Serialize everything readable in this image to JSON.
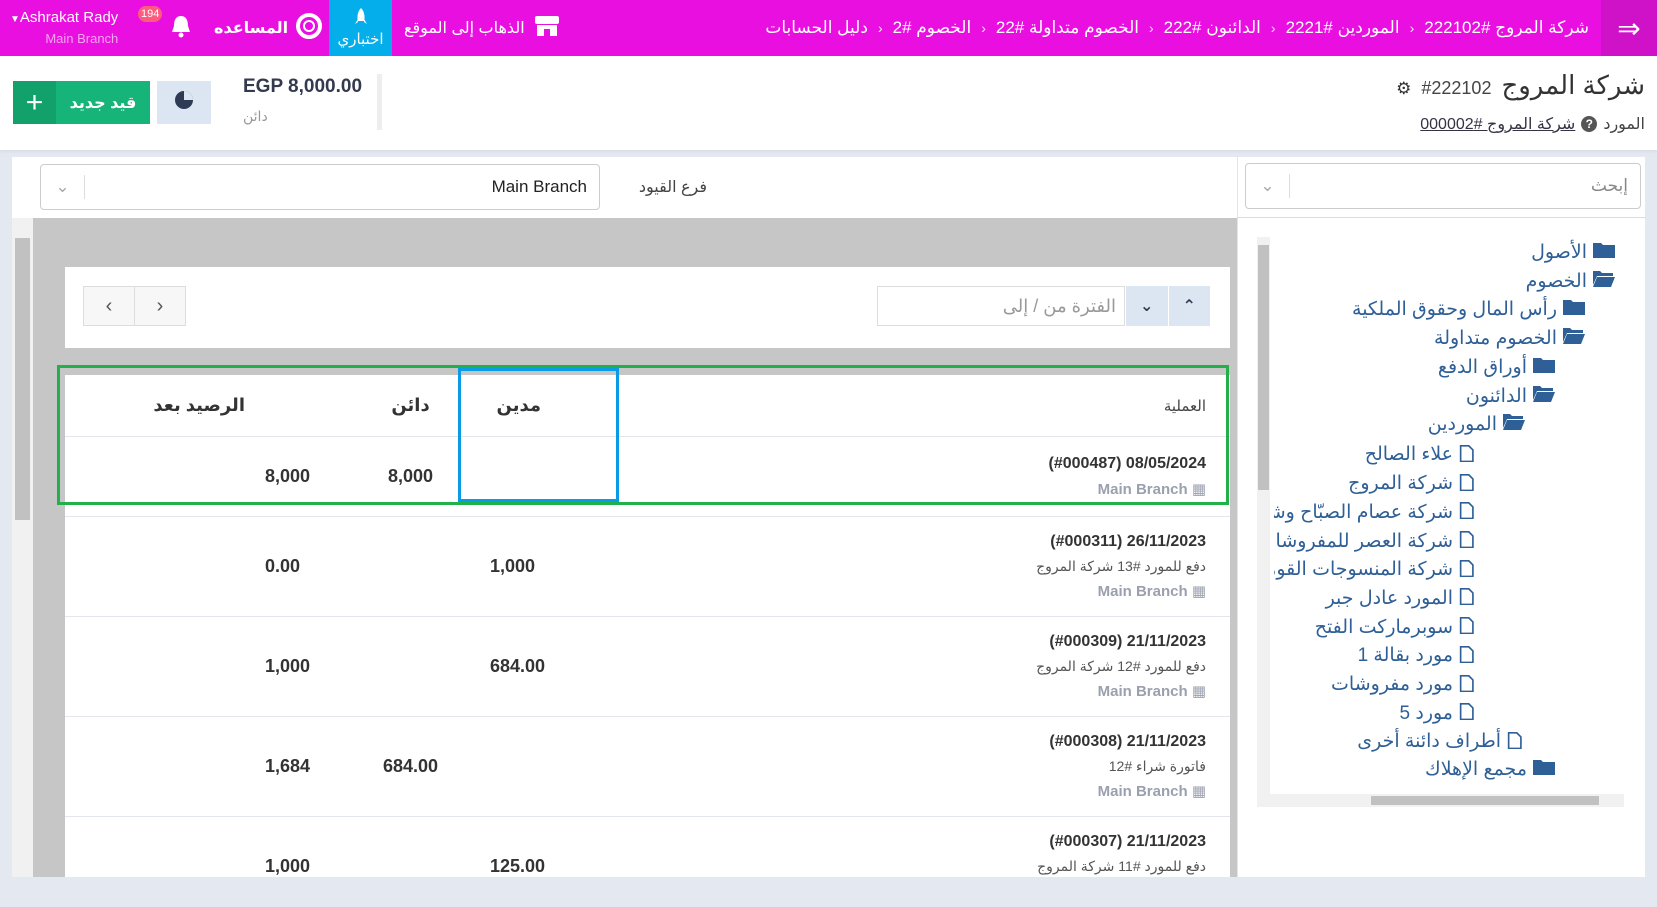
{
  "topbar": {
    "breadcrumbs": [
      "دليل الحسابات",
      "الخصوم #2",
      "الخصوم متداولة #22",
      "الدائنون #222",
      "الموردين #2221",
      "شركة المروج #222102"
    ],
    "go_to_site": "الذهاب إلى الموقع",
    "test_label": "اختباري",
    "help": "المساعده",
    "notifications": "194",
    "user_name": "Ashrakat Rady",
    "user_branch": "Main Branch",
    "accent": "#e90fe0"
  },
  "header": {
    "title": "شركة المروج",
    "code": "#222102",
    "supplier_label": "المورد",
    "supplier_link": "شركة المروج #000002",
    "balance": "EGP 8,000.00",
    "balance_type": "دائن",
    "new_entry": "قيد جديد"
  },
  "filters": {
    "branch_label": "فرع القيود",
    "branch_value": "Main Branch",
    "period_placeholder": "الفترة من / إلى",
    "search_placeholder": "إبحث"
  },
  "table": {
    "headers": {
      "operation": "العملية",
      "debit": "مدين",
      "credit": "دائن",
      "balance": "الرصيد بعد"
    },
    "rows": [
      {
        "date": "(#000487) 08/05/2024",
        "desc": "",
        "branch": "Main Branch",
        "debit": "",
        "credit": "8,000",
        "balance": "8,000"
      },
      {
        "date": "(#000311) 26/11/2023",
        "desc": "دفع للمورد #13 شركة المروج",
        "branch": "Main Branch",
        "debit": "1,000",
        "credit": "",
        "balance": "0.00"
      },
      {
        "date": "(#000309) 21/11/2023",
        "desc": "دفع للمورد #12 شركة المروج",
        "branch": "Main Branch",
        "debit": "684.00",
        "credit": "",
        "balance": "1,000"
      },
      {
        "date": "(#000308) 21/11/2023",
        "desc": "فاتورة شراء #12",
        "branch": "Main Branch",
        "debit": "",
        "credit": "684.00",
        "balance": "1,684"
      },
      {
        "date": "(#000307) 21/11/2023",
        "desc": "دفع للمورد #11 شركة المروج",
        "branch": "Main Branch",
        "debit": "125.00",
        "credit": "",
        "balance": "1,000"
      }
    ]
  },
  "tree": [
    {
      "label": "الأصول",
      "icon": "folder",
      "level": 0
    },
    {
      "label": "الخصوم",
      "icon": "folder-open",
      "level": 0
    },
    {
      "label": "رأس المال وحقوق الملكية",
      "icon": "folder",
      "level": 1
    },
    {
      "label": "الخصوم متداولة",
      "icon": "folder-open",
      "level": 1
    },
    {
      "label": "أوراق الدفع",
      "icon": "folder",
      "level": 2
    },
    {
      "label": "الدائنون",
      "icon": "folder-open",
      "level": 2
    },
    {
      "label": "الموردين",
      "icon": "folder-open",
      "level": 3
    },
    {
      "label": "علاء الصالح",
      "icon": "file",
      "level": 4
    },
    {
      "label": "شركة المروج",
      "icon": "file",
      "level": 4
    },
    {
      "label": "شركة عصام الصبّاح وشركاه",
      "icon": "file",
      "level": 4
    },
    {
      "label": "شركة العصر للمفروشات",
      "icon": "file",
      "level": 4
    },
    {
      "label": "شركة المنسوجات القومية",
      "icon": "file",
      "level": 4
    },
    {
      "label": "المورد عادل جبر",
      "icon": "file",
      "level": 4
    },
    {
      "label": "سوبرماركت الفتح",
      "icon": "file",
      "level": 4
    },
    {
      "label": "مورد بقالة 1",
      "icon": "file",
      "level": 4
    },
    {
      "label": "مورد مفروشات",
      "icon": "file",
      "level": 4
    },
    {
      "label": "مورد 5",
      "icon": "file",
      "level": 4
    },
    {
      "label": "أطراف دائنة أخرى",
      "icon": "file",
      "level": 3
    },
    {
      "label": "مجمع الإهلاك",
      "icon": "folder",
      "level": 2
    }
  ]
}
